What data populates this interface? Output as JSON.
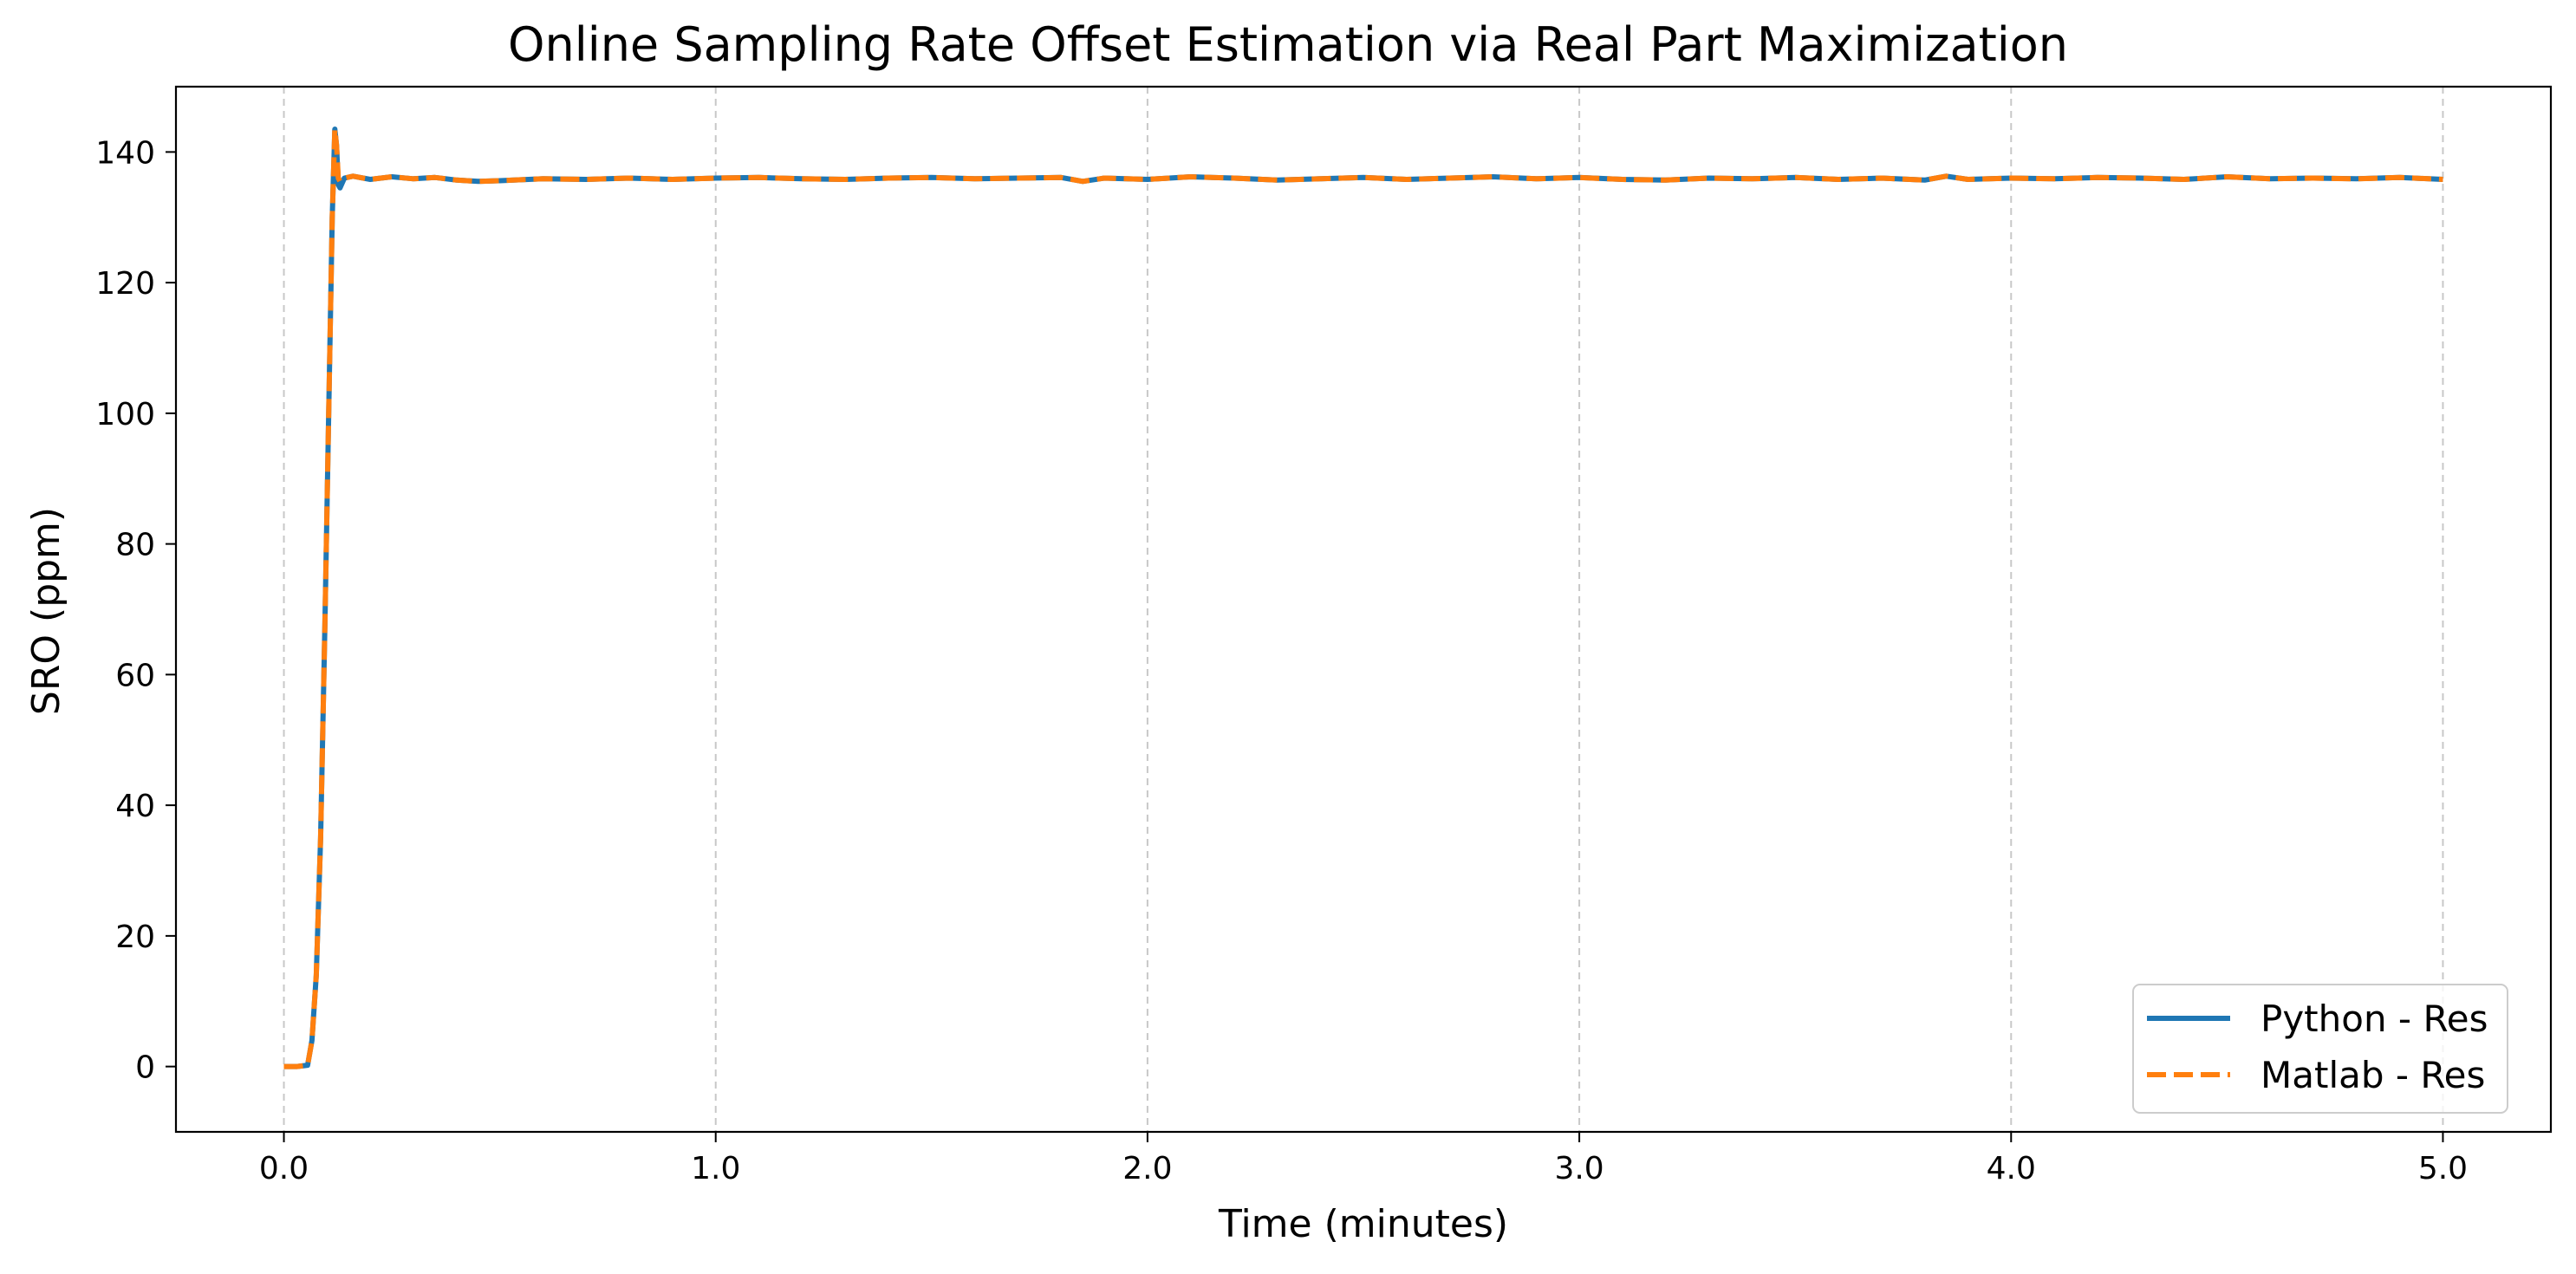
{
  "chart_data": {
    "type": "line",
    "title": "Online Sampling Rate Offset Estimation via Real Part Maximization",
    "xlabel": "Time (minutes)",
    "ylabel": "SRO (ppm)",
    "xlim": [
      -0.25,
      5.25
    ],
    "ylim": [
      -10,
      150
    ],
    "xticks": [
      0.0,
      1.0,
      2.0,
      3.0,
      4.0,
      5.0
    ],
    "xtick_labels": [
      "0.0",
      "1.0",
      "2.0",
      "3.0",
      "4.0",
      "5.0"
    ],
    "yticks": [
      0,
      20,
      40,
      60,
      80,
      100,
      120,
      140
    ],
    "ytick_labels": [
      "0",
      "20",
      "40",
      "60",
      "80",
      "100",
      "120",
      "140"
    ],
    "grid": "x-only-dashed",
    "legend_position": "lower-right",
    "series": [
      {
        "name": "Python - Res",
        "color": "#1f77b4",
        "style": "solid",
        "x": [
          0.0,
          0.03,
          0.055,
          0.065,
          0.075,
          0.085,
          0.095,
          0.105,
          0.112,
          0.118,
          0.122,
          0.126,
          0.13,
          0.14,
          0.16,
          0.2,
          0.25,
          0.3,
          0.35,
          0.4,
          0.45,
          0.5,
          0.6,
          0.7,
          0.8,
          0.9,
          1.0,
          1.1,
          1.2,
          1.3,
          1.4,
          1.5,
          1.6,
          1.7,
          1.8,
          1.85,
          1.9,
          2.0,
          2.1,
          2.2,
          2.3,
          2.4,
          2.5,
          2.6,
          2.7,
          2.8,
          2.9,
          3.0,
          3.1,
          3.2,
          3.3,
          3.4,
          3.5,
          3.6,
          3.7,
          3.8,
          3.85,
          3.9,
          4.0,
          4.1,
          4.2,
          4.3,
          4.4,
          4.5,
          4.6,
          4.7,
          4.8,
          4.9,
          5.0
        ],
        "y": [
          0,
          0,
          0.2,
          4,
          14,
          35,
          68,
          105,
          130,
          143.5,
          141,
          135,
          134.5,
          136,
          136.3,
          135.8,
          136.2,
          135.9,
          136.1,
          135.7,
          135.5,
          135.6,
          135.9,
          135.8,
          136.0,
          135.8,
          136.0,
          136.1,
          135.9,
          135.8,
          136.0,
          136.1,
          135.9,
          136.0,
          136.1,
          135.5,
          136.0,
          135.8,
          136.2,
          136.0,
          135.7,
          135.9,
          136.1,
          135.8,
          136.0,
          136.2,
          135.9,
          136.1,
          135.8,
          135.7,
          136.0,
          135.9,
          136.1,
          135.8,
          136.0,
          135.7,
          136.3,
          135.8,
          136.0,
          135.9,
          136.1,
          136.0,
          135.8,
          136.2,
          135.9,
          136.0,
          135.9,
          136.1,
          135.8
        ]
      },
      {
        "name": "Matlab - Res",
        "color": "#ff7f0e",
        "style": "dashed",
        "x": [
          0.0,
          0.03,
          0.055,
          0.065,
          0.075,
          0.085,
          0.095,
          0.105,
          0.112,
          0.118,
          0.122,
          0.126,
          0.13,
          0.14,
          0.16,
          0.2,
          0.25,
          0.3,
          0.35,
          0.4,
          0.45,
          0.5,
          0.6,
          0.7,
          0.8,
          0.9,
          1.0,
          1.1,
          1.2,
          1.3,
          1.4,
          1.5,
          1.6,
          1.7,
          1.8,
          1.85,
          1.9,
          2.0,
          2.1,
          2.2,
          2.3,
          2.4,
          2.5,
          2.6,
          2.7,
          2.8,
          2.9,
          3.0,
          3.1,
          3.2,
          3.3,
          3.4,
          3.5,
          3.6,
          3.7,
          3.8,
          3.85,
          3.9,
          4.0,
          4.1,
          4.2,
          4.3,
          4.4,
          4.5,
          4.6,
          4.7,
          4.8,
          4.9,
          5.0
        ],
        "y": [
          0,
          0,
          0.2,
          4,
          14,
          35,
          68,
          105,
          130,
          143.5,
          141,
          136,
          135.5,
          136,
          136.3,
          135.8,
          136.2,
          135.9,
          136.1,
          135.7,
          135.5,
          135.6,
          135.9,
          135.8,
          136.0,
          135.8,
          136.0,
          136.1,
          135.9,
          135.8,
          136.0,
          136.1,
          135.9,
          136.0,
          136.1,
          135.5,
          136.0,
          135.8,
          136.2,
          136.0,
          135.7,
          135.9,
          136.1,
          135.8,
          136.0,
          136.2,
          135.9,
          136.1,
          135.8,
          135.7,
          136.0,
          135.9,
          136.1,
          135.8,
          136.0,
          135.7,
          136.3,
          135.8,
          136.0,
          135.9,
          136.1,
          136.0,
          135.8,
          136.2,
          135.9,
          136.0,
          135.9,
          136.1,
          135.8
        ]
      }
    ]
  }
}
